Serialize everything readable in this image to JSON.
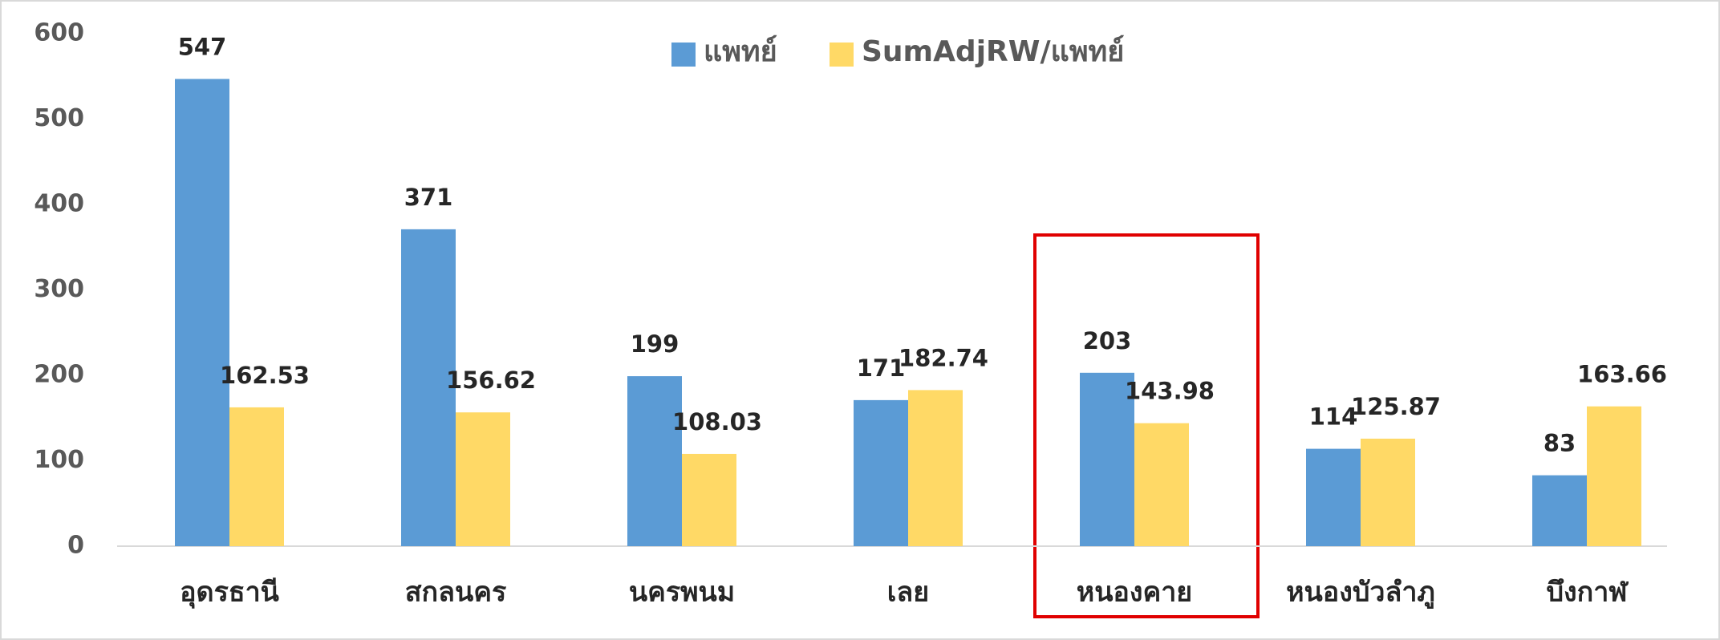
{
  "chart_data": {
    "type": "bar",
    "categories": [
      "อุดรธานี",
      "สกลนคร",
      "นครพนม",
      "เลย",
      "หนองคาย",
      "หนองบัวลำภู",
      "บึงกาฬ"
    ],
    "series": [
      {
        "name": "แพทย์",
        "color": "#5b9bd5",
        "values": [
          547,
          371,
          199,
          171,
          203,
          114,
          83
        ]
      },
      {
        "name": "SumAdjRW/แพทย์",
        "color": "#ffd966",
        "values": [
          162.53,
          156.62,
          108.03,
          182.74,
          143.98,
          125.87,
          163.66
        ]
      }
    ],
    "ylim": [
      0,
      600
    ],
    "yticks": [
      0,
      100,
      200,
      300,
      400,
      500,
      600
    ],
    "grid": false,
    "legend": "top"
  }
}
